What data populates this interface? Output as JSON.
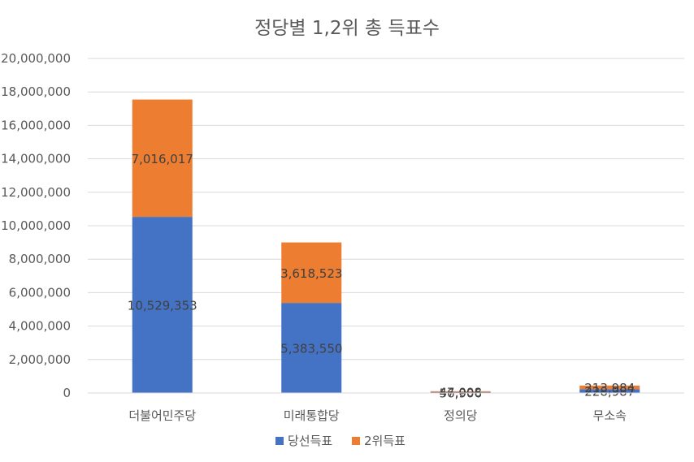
{
  "chart_data": {
    "type": "bar",
    "stacked": true,
    "title": "정당별 1,2위 총 득표수",
    "categories": [
      "더불어민주당",
      "미래통합당",
      "정의당",
      "무소속"
    ],
    "series": [
      {
        "name": "당선득표",
        "color": "#4472c4",
        "values": [
          10529353,
          5383550,
          56906,
          228987
        ],
        "labels": [
          "10,529,353",
          "5,383,550",
          "56,906",
          "228,987"
        ]
      },
      {
        "name": "2위득표",
        "color": "#ed7d31",
        "values": [
          7016017,
          3618523,
          47008,
          213984
        ],
        "labels": [
          "7,016,017",
          "3,618,523",
          "47,008",
          "213,984"
        ]
      }
    ],
    "ylim": [
      0,
      20000000
    ],
    "yticks": [
      0,
      2000000,
      4000000,
      6000000,
      8000000,
      10000000,
      12000000,
      14000000,
      16000000,
      18000000,
      20000000
    ],
    "ytick_labels": [
      "0",
      "2,000,000",
      "4,000,000",
      "6,000,000",
      "8,000,000",
      "10,000,000",
      "12,000,000",
      "14,000,000",
      "16,000,000",
      "18,000,000",
      "20,000,000"
    ],
    "grid": true,
    "legend_position": "bottom"
  }
}
